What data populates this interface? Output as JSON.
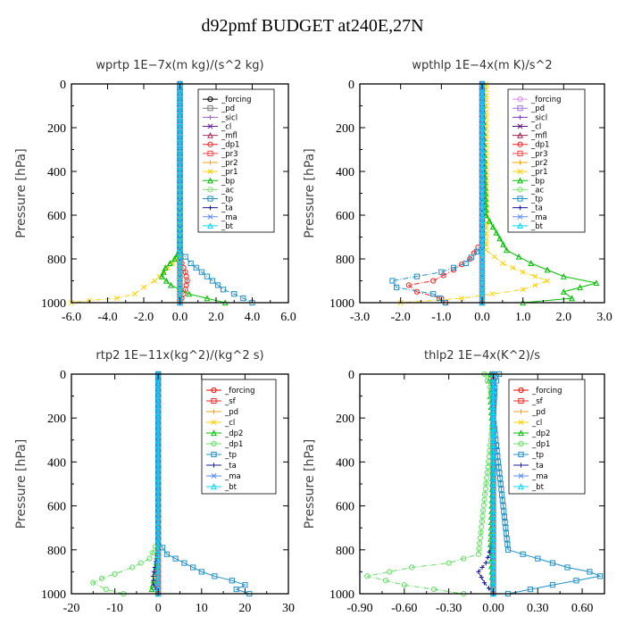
{
  "title": "d92pmf  BUDGET at240E,27N",
  "chart_data": [
    {
      "type": "line",
      "title": "wprtp  1E−7x(m kg)/(s^2 kg)",
      "ylabel": "Pressure [hPa]",
      "xlim": [
        -6,
        6
      ],
      "ylim": [
        1000,
        0
      ],
      "xticks": [
        -6,
        -4,
        -2,
        0,
        2,
        4,
        6
      ],
      "xtick_labels": [
        "-6.0",
        "-4.0",
        "-2.0",
        "0.0",
        "2.0",
        "4.0",
        "6.0"
      ],
      "yticks": [
        0,
        200,
        400,
        600,
        800,
        1000
      ],
      "series": [
        {
          "name": "_forcing",
          "color": "#000000",
          "x": [
            0,
            0,
            0,
            0,
            0,
            0,
            0
          ],
          "y": [
            0,
            200,
            400,
            600,
            800,
            900,
            1000
          ]
        },
        {
          "name": "_pd",
          "color": "#7a7a7a",
          "x": [
            0,
            0
          ],
          "y": [
            0,
            1000
          ]
        },
        {
          "name": "_sicl",
          "color": "#9a5fd0",
          "x": [
            0,
            0
          ],
          "y": [
            0,
            1000
          ]
        },
        {
          "name": "_cl",
          "color": "#6a1b9a",
          "x": [
            0,
            0
          ],
          "y": [
            0,
            1000
          ]
        },
        {
          "name": "_mfl",
          "color": "#b03060",
          "x": [
            0,
            0
          ],
          "y": [
            0,
            1000
          ]
        },
        {
          "name": "_dp1",
          "color": "#ff2020",
          "x": [
            0,
            0,
            0.1,
            0.3,
            0.4,
            0.3,
            0.1,
            0
          ],
          "y": [
            0,
            780,
            820,
            860,
            900,
            940,
            980,
            1000
          ]
        },
        {
          "name": "_pr3",
          "color": "#ff4040",
          "x": [
            0,
            0
          ],
          "y": [
            0,
            1000
          ]
        },
        {
          "name": "_pr2",
          "color": "#f5a000",
          "x": [
            0,
            0
          ],
          "y": [
            0,
            1000
          ]
        },
        {
          "name": "_pr1",
          "color": "#ffd000",
          "x": [
            0,
            0,
            -0.4,
            -0.9,
            -1.4,
            -2.0,
            -2.5,
            -3.5,
            -5.0,
            -6.0
          ],
          "y": [
            0,
            780,
            820,
            860,
            900,
            930,
            960,
            980,
            990,
            1000
          ]
        },
        {
          "name": "_bp",
          "color": "#00c000",
          "x": [
            0,
            0,
            -0.3,
            -0.8,
            -1.0,
            -0.5,
            0.5,
            1.5,
            2.5
          ],
          "y": [
            0,
            760,
            800,
            840,
            880,
            920,
            960,
            980,
            1000
          ]
        },
        {
          "name": "_ac",
          "color": "#7fe070",
          "x": [
            0,
            0
          ],
          "y": [
            0,
            1000
          ]
        },
        {
          "name": "_tp",
          "color": "#1e90c8",
          "x": [
            0,
            0,
            0.6,
            1.2,
            1.8,
            2.4,
            3.0,
            3.5,
            4.0
          ],
          "y": [
            0,
            760,
            820,
            860,
            900,
            940,
            960,
            980,
            1000
          ]
        },
        {
          "name": "_ta",
          "color": "#1a1aa0",
          "x": [
            0,
            0
          ],
          "y": [
            0,
            1000
          ]
        },
        {
          "name": "_ma",
          "color": "#5a8aff",
          "x": [
            0,
            0
          ],
          "y": [
            0,
            1000
          ]
        },
        {
          "name": "_bt",
          "color": "#00d8ff",
          "x": [
            0,
            0
          ],
          "y": [
            0,
            1000
          ]
        }
      ]
    },
    {
      "type": "line",
      "title": "wpthlp  1E−4x(m K)/s^2",
      "ylabel": "Pressure [hPa]",
      "xlim": [
        -3,
        3
      ],
      "ylim": [
        1000,
        0
      ],
      "xticks": [
        -3,
        -2,
        -1,
        0,
        1,
        2,
        3
      ],
      "xtick_labels": [
        "-3.0",
        "-2.0",
        "-1.0",
        "0.0",
        "1.0",
        "2.0",
        "3.0"
      ],
      "yticks": [
        0,
        200,
        400,
        600,
        800,
        1000
      ],
      "series": [
        {
          "name": "_forcing",
          "color": "#d890e8",
          "x": [
            0,
            0
          ],
          "y": [
            0,
            1000
          ]
        },
        {
          "name": "_pd",
          "color": "#a070e0",
          "x": [
            0,
            0
          ],
          "y": [
            0,
            1000
          ]
        },
        {
          "name": "_sicl",
          "color": "#7a40c0",
          "x": [
            0,
            0
          ],
          "y": [
            0,
            1000
          ]
        },
        {
          "name": "_cl",
          "color": "#5a1080",
          "x": [
            0,
            0
          ],
          "y": [
            0,
            1000
          ]
        },
        {
          "name": "_mfl",
          "color": "#a02050",
          "x": [
            0,
            0
          ],
          "y": [
            0,
            1000
          ]
        },
        {
          "name": "_dp1",
          "color": "#ff2020",
          "x": [
            0,
            0,
            -0.3,
            -0.7,
            -1.2,
            -1.8,
            -1.6,
            -1.0,
            -0.9
          ],
          "y": [
            0,
            720,
            800,
            850,
            900,
            920,
            950,
            980,
            1000
          ]
        },
        {
          "name": "_pr3",
          "color": "#ff4040",
          "x": [
            0,
            0
          ],
          "y": [
            0,
            1000
          ]
        },
        {
          "name": "_pr2",
          "color": "#f5a000",
          "x": [
            0,
            0
          ],
          "y": [
            0,
            1000
          ]
        },
        {
          "name": "_pr1",
          "color": "#ffd000",
          "x": [
            0.1,
            0.1,
            0.5,
            1.0,
            1.6,
            1.0,
            -0.5,
            -2.0
          ],
          "y": [
            0,
            760,
            820,
            860,
            900,
            940,
            980,
            1000
          ]
        },
        {
          "name": "_bp",
          "color": "#00c000",
          "x": [
            0,
            0.1,
            0.6,
            1.2,
            2.0,
            2.8,
            2.0,
            2.2,
            1.0
          ],
          "y": [
            0,
            600,
            760,
            820,
            880,
            910,
            950,
            980,
            1000
          ]
        },
        {
          "name": "_ac",
          "color": "#7fe070",
          "x": [
            0,
            0
          ],
          "y": [
            0,
            1000
          ]
        },
        {
          "name": "_tp",
          "color": "#1e90c8",
          "x": [
            0,
            0,
            -0.4,
            -1.0,
            -2.2,
            -2.1,
            -1.2,
            -0.9
          ],
          "y": [
            0,
            740,
            820,
            860,
            900,
            930,
            960,
            1000
          ]
        },
        {
          "name": "_ta",
          "color": "#1a1aa0",
          "x": [
            0,
            0
          ],
          "y": [
            0,
            1000
          ]
        },
        {
          "name": "_ma",
          "color": "#5a8aff",
          "x": [
            0,
            0
          ],
          "y": [
            0,
            1000
          ]
        },
        {
          "name": "_bt",
          "color": "#00d8ff",
          "x": [
            0,
            0
          ],
          "y": [
            0,
            1000
          ]
        }
      ]
    },
    {
      "type": "line",
      "title": "rtp2  1E−11x(kg^2)/(kg^2 s)",
      "ylabel": "Pressure [hPa]",
      "xlim": [
        -20,
        30
      ],
      "ylim": [
        1000,
        0
      ],
      "xticks": [
        -20,
        -10,
        0,
        10,
        20,
        30
      ],
      "xtick_labels": [
        "-20",
        "-10",
        "0",
        "10",
        "20",
        "30"
      ],
      "yticks": [
        0,
        200,
        400,
        600,
        800,
        1000
      ],
      "series": [
        {
          "name": "_forcing",
          "color": "#ff0000",
          "x": [
            0,
            0
          ],
          "y": [
            0,
            1000
          ]
        },
        {
          "name": "_sf",
          "color": "#ff2020",
          "x": [
            0,
            0
          ],
          "y": [
            0,
            1000
          ]
        },
        {
          "name": "_pd",
          "color": "#f5a000",
          "x": [
            0,
            0
          ],
          "y": [
            0,
            1000
          ]
        },
        {
          "name": "_cl",
          "color": "#ffd000",
          "x": [
            0,
            0
          ],
          "y": [
            0,
            1000
          ]
        },
        {
          "name": "_dp2",
          "color": "#00c000",
          "x": [
            0,
            0,
            -0.5,
            -1.0,
            -1.5,
            0
          ],
          "y": [
            0,
            760,
            880,
            940,
            980,
            1000
          ]
        },
        {
          "name": "_dp1",
          "color": "#60e060",
          "x": [
            0,
            0,
            -2.0,
            -6.0,
            -10.0,
            -13.0,
            -15.0,
            -12.0,
            -8.0
          ],
          "y": [
            0,
            760,
            840,
            880,
            910,
            930,
            950,
            980,
            1000
          ]
        },
        {
          "name": "_tp",
          "color": "#1e90c8",
          "x": [
            0,
            0,
            2.0,
            6.0,
            10.0,
            13.0,
            17.0,
            20.0,
            18.0,
            21.0
          ],
          "y": [
            0,
            760,
            820,
            860,
            900,
            920,
            940,
            960,
            980,
            1000
          ]
        },
        {
          "name": "_ta",
          "color": "#1a1aa0",
          "x": [
            0,
            0,
            -0.8,
            -1.2,
            -1.0,
            0
          ],
          "y": [
            0,
            800,
            880,
            920,
            960,
            1000
          ]
        },
        {
          "name": "_ma",
          "color": "#5a8aff",
          "x": [
            0,
            0
          ],
          "y": [
            0,
            1000
          ]
        },
        {
          "name": "_bt",
          "color": "#00d8ff",
          "x": [
            0,
            0
          ],
          "y": [
            0,
            1000
          ]
        }
      ]
    },
    {
      "type": "line",
      "title": "thlp2  1E−4x(K^2)/s",
      "ylabel": "Pressure [hPa]",
      "xlim": [
        -0.9,
        0.75
      ],
      "ylim": [
        1000,
        0
      ],
      "xticks": [
        -0.9,
        -0.6,
        -0.3,
        0,
        0.3,
        0.6
      ],
      "xtick_labels": [
        "-0.90",
        "-0.60",
        "-0.30",
        "0.00",
        "0.30",
        "0.60"
      ],
      "yticks": [
        0,
        200,
        400,
        600,
        800,
        1000
      ],
      "series": [
        {
          "name": "_forcing",
          "color": "#ff0000",
          "x": [
            0,
            0
          ],
          "y": [
            0,
            1000
          ]
        },
        {
          "name": "_sf",
          "color": "#ff2020",
          "x": [
            0,
            0
          ],
          "y": [
            0,
            1000
          ]
        },
        {
          "name": "_pd",
          "color": "#f5a000",
          "x": [
            0,
            0
          ],
          "y": [
            0,
            1000
          ]
        },
        {
          "name": "_cl",
          "color": "#ffd000",
          "x": [
            0,
            0
          ],
          "y": [
            0,
            1000
          ]
        },
        {
          "name": "_dp2",
          "color": "#00c000",
          "x": [
            -0.02,
            -0.03,
            -0.01,
            -0.02,
            0,
            -0.01,
            -0.02,
            0
          ],
          "y": [
            0,
            30,
            60,
            100,
            300,
            600,
            800,
            1000
          ]
        },
        {
          "name": "_dp1",
          "color": "#60e060",
          "x": [
            -0.06,
            -0.04,
            -0.02,
            0,
            -0.1,
            -0.3,
            -0.55,
            -0.7,
            -0.85,
            -0.6,
            -0.2
          ],
          "y": [
            0,
            30,
            60,
            200,
            820,
            860,
            880,
            900,
            920,
            960,
            1000
          ]
        },
        {
          "name": "_tp",
          "color": "#1e90c8",
          "x": [
            0.04,
            0.02,
            0.01,
            0,
            0.1,
            0.3,
            0.5,
            0.65,
            0.72,
            0.4,
            0.1
          ],
          "y": [
            0,
            30,
            60,
            200,
            800,
            840,
            880,
            900,
            920,
            960,
            1000
          ]
        },
        {
          "name": "_ta",
          "color": "#1a1aa0",
          "x": [
            0,
            0,
            -0.05,
            -0.1,
            -0.06,
            0
          ],
          "y": [
            0,
            760,
            860,
            900,
            950,
            1000
          ]
        },
        {
          "name": "_ma",
          "color": "#5a8aff",
          "x": [
            0,
            0
          ],
          "y": [
            0,
            1000
          ]
        },
        {
          "name": "_bt",
          "color": "#00d8ff",
          "x": [
            0,
            0
          ],
          "y": [
            0,
            1000
          ]
        }
      ]
    }
  ]
}
